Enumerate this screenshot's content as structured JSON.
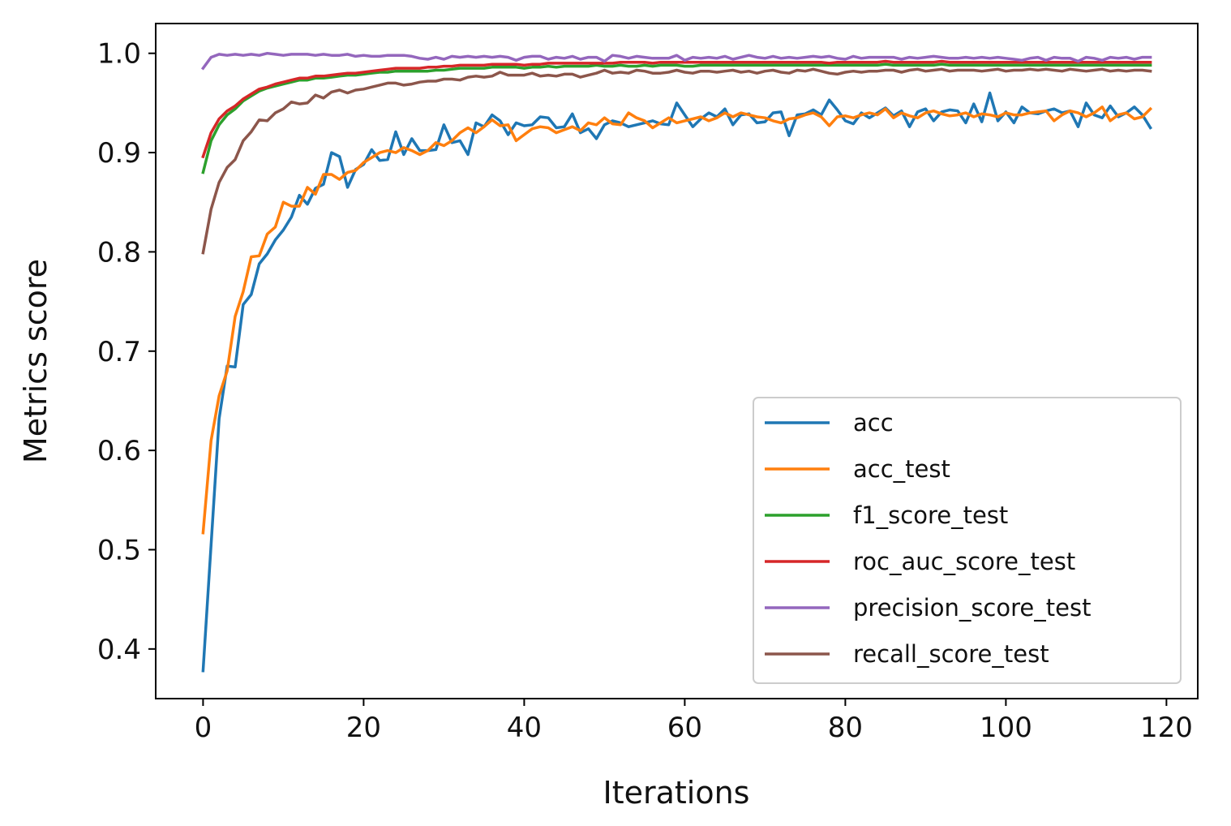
{
  "chart_data": {
    "type": "line",
    "title": "",
    "xlabel": "Iterations",
    "ylabel": "Metrics score",
    "xlim": [
      -5.9,
      123.9
    ],
    "ylim": [
      0.35,
      1.03
    ],
    "xticks": [
      0,
      20,
      40,
      60,
      80,
      100,
      120
    ],
    "yticks": [
      0.4,
      0.5,
      0.6,
      0.7,
      0.8,
      0.9,
      1.0
    ],
    "xtick_labels": [
      "0",
      "20",
      "40",
      "60",
      "80",
      "100",
      "120"
    ],
    "ytick_labels": [
      "0.4",
      "0.5",
      "0.6",
      "0.7",
      "0.8",
      "0.9",
      "1.0"
    ],
    "grid": false,
    "legend_position": "lower-right",
    "series": [
      {
        "name": "acc",
        "color": "#1f77b4",
        "values": [
          0.378,
          0.505,
          0.632,
          0.685,
          0.684,
          0.747,
          0.757,
          0.788,
          0.798,
          0.812,
          0.822,
          0.835,
          0.857,
          0.848,
          0.864,
          0.868,
          0.9,
          0.896,
          0.865,
          0.883,
          0.888,
          0.903,
          0.892,
          0.893,
          0.921,
          0.898,
          0.914,
          0.902,
          0.902,
          0.903,
          0.928,
          0.91,
          0.912,
          0.898,
          0.93,
          0.926,
          0.938,
          0.932,
          0.918,
          0.93,
          0.927,
          0.928,
          0.936,
          0.935,
          0.925,
          0.926,
          0.939,
          0.92,
          0.924,
          0.914,
          0.928,
          0.932,
          0.93,
          0.926,
          0.928,
          0.93,
          0.932,
          0.929,
          0.928,
          0.95,
          0.938,
          0.926,
          0.934,
          0.94,
          0.936,
          0.944,
          0.928,
          0.938,
          0.939,
          0.93,
          0.931,
          0.94,
          0.941,
          0.917,
          0.938,
          0.939,
          0.943,
          0.938,
          0.953,
          0.943,
          0.932,
          0.929,
          0.94,
          0.935,
          0.94,
          0.945,
          0.937,
          0.942,
          0.926,
          0.941,
          0.944,
          0.932,
          0.941,
          0.943,
          0.942,
          0.93,
          0.949,
          0.931,
          0.96,
          0.932,
          0.941,
          0.93,
          0.946,
          0.94,
          0.939,
          0.942,
          0.944,
          0.94,
          0.942,
          0.926,
          0.95,
          0.938,
          0.935,
          0.947,
          0.936,
          0.94,
          0.946,
          0.938,
          0.925
        ]
      },
      {
        "name": "acc_test",
        "color": "#ff7f0e",
        "values": [
          0.517,
          0.61,
          0.655,
          0.68,
          0.735,
          0.76,
          0.795,
          0.796,
          0.818,
          0.825,
          0.85,
          0.846,
          0.846,
          0.865,
          0.858,
          0.878,
          0.878,
          0.873,
          0.88,
          0.882,
          0.89,
          0.895,
          0.9,
          0.902,
          0.9,
          0.905,
          0.902,
          0.898,
          0.902,
          0.91,
          0.907,
          0.912,
          0.92,
          0.925,
          0.92,
          0.926,
          0.933,
          0.927,
          0.928,
          0.912,
          0.918,
          0.924,
          0.926,
          0.925,
          0.92,
          0.923,
          0.926,
          0.922,
          0.93,
          0.928,
          0.935,
          0.929,
          0.928,
          0.94,
          0.935,
          0.932,
          0.925,
          0.93,
          0.935,
          0.93,
          0.932,
          0.934,
          0.936,
          0.932,
          0.935,
          0.94,
          0.936,
          0.94,
          0.938,
          0.936,
          0.935,
          0.932,
          0.93,
          0.934,
          0.935,
          0.938,
          0.94,
          0.936,
          0.927,
          0.936,
          0.937,
          0.935,
          0.938,
          0.94,
          0.938,
          0.944,
          0.935,
          0.94,
          0.937,
          0.935,
          0.94,
          0.942,
          0.939,
          0.937,
          0.938,
          0.94,
          0.936,
          0.939,
          0.938,
          0.936,
          0.94,
          0.938,
          0.938,
          0.94,
          0.941,
          0.942,
          0.932,
          0.938,
          0.942,
          0.94,
          0.936,
          0.94,
          0.946,
          0.932,
          0.938,
          0.94,
          0.934,
          0.936,
          0.944
        ]
      },
      {
        "name": "f1_score_test",
        "color": "#2ca02c",
        "values": [
          0.88,
          0.912,
          0.928,
          0.938,
          0.944,
          0.952,
          0.957,
          0.962,
          0.965,
          0.967,
          0.969,
          0.971,
          0.973,
          0.973,
          0.975,
          0.975,
          0.976,
          0.977,
          0.978,
          0.978,
          0.979,
          0.98,
          0.981,
          0.981,
          0.982,
          0.982,
          0.982,
          0.982,
          0.982,
          0.983,
          0.983,
          0.984,
          0.985,
          0.985,
          0.985,
          0.985,
          0.986,
          0.986,
          0.986,
          0.986,
          0.985,
          0.986,
          0.986,
          0.987,
          0.986,
          0.987,
          0.987,
          0.987,
          0.987,
          0.988,
          0.987,
          0.987,
          0.988,
          0.987,
          0.987,
          0.988,
          0.987,
          0.988,
          0.988,
          0.988,
          0.987,
          0.987,
          0.988,
          0.988,
          0.988,
          0.988,
          0.988,
          0.988,
          0.988,
          0.988,
          0.988,
          0.988,
          0.988,
          0.988,
          0.988,
          0.988,
          0.988,
          0.988,
          0.988,
          0.988,
          0.988,
          0.988,
          0.988,
          0.988,
          0.988,
          0.989,
          0.988,
          0.988,
          0.988,
          0.988,
          0.988,
          0.988,
          0.989,
          0.988,
          0.988,
          0.988,
          0.988,
          0.988,
          0.988,
          0.988,
          0.988,
          0.988,
          0.988,
          0.988,
          0.988,
          0.988,
          0.988,
          0.988,
          0.988,
          0.988,
          0.988,
          0.988,
          0.988,
          0.988,
          0.988,
          0.988,
          0.988,
          0.988,
          0.988
        ]
      },
      {
        "name": "roc_auc_score_test",
        "color": "#d62728",
        "values": [
          0.896,
          0.92,
          0.934,
          0.942,
          0.947,
          0.954,
          0.959,
          0.964,
          0.966,
          0.969,
          0.971,
          0.973,
          0.975,
          0.975,
          0.977,
          0.977,
          0.978,
          0.979,
          0.98,
          0.98,
          0.981,
          0.982,
          0.983,
          0.984,
          0.985,
          0.985,
          0.985,
          0.985,
          0.986,
          0.986,
          0.987,
          0.987,
          0.988,
          0.988,
          0.988,
          0.988,
          0.989,
          0.989,
          0.989,
          0.989,
          0.988,
          0.989,
          0.989,
          0.99,
          0.99,
          0.99,
          0.99,
          0.99,
          0.99,
          0.99,
          0.99,
          0.99,
          0.991,
          0.991,
          0.991,
          0.991,
          0.99,
          0.991,
          0.991,
          0.991,
          0.991,
          0.991,
          0.991,
          0.991,
          0.991,
          0.991,
          0.991,
          0.991,
          0.991,
          0.991,
          0.991,
          0.991,
          0.991,
          0.991,
          0.991,
          0.991,
          0.991,
          0.991,
          0.99,
          0.991,
          0.991,
          0.991,
          0.991,
          0.991,
          0.991,
          0.992,
          0.991,
          0.991,
          0.991,
          0.991,
          0.991,
          0.991,
          0.992,
          0.991,
          0.991,
          0.991,
          0.991,
          0.991,
          0.991,
          0.991,
          0.991,
          0.991,
          0.991,
          0.991,
          0.991,
          0.991,
          0.991,
          0.991,
          0.991,
          0.991,
          0.991,
          0.991,
          0.991,
          0.991,
          0.991,
          0.991,
          0.991,
          0.991,
          0.991
        ]
      },
      {
        "name": "precision_score_test",
        "color": "#9467bd",
        "values": [
          0.985,
          0.996,
          0.999,
          0.998,
          0.999,
          0.998,
          0.999,
          0.998,
          1.0,
          0.999,
          0.998,
          0.999,
          0.999,
          0.999,
          0.998,
          0.999,
          0.998,
          0.998,
          0.999,
          0.997,
          0.998,
          0.997,
          0.997,
          0.998,
          0.998,
          0.998,
          0.997,
          0.995,
          0.994,
          0.996,
          0.994,
          0.997,
          0.996,
          0.997,
          0.996,
          0.997,
          0.996,
          0.997,
          0.996,
          0.993,
          0.996,
          0.997,
          0.997,
          0.994,
          0.996,
          0.995,
          0.997,
          0.994,
          0.996,
          0.996,
          0.992,
          0.998,
          0.997,
          0.995,
          0.997,
          0.996,
          0.995,
          0.995,
          0.995,
          0.998,
          0.993,
          0.996,
          0.995,
          0.996,
          0.995,
          0.997,
          0.994,
          0.996,
          0.998,
          0.996,
          0.995,
          0.997,
          0.995,
          0.996,
          0.995,
          0.996,
          0.997,
          0.996,
          0.997,
          0.995,
          0.994,
          0.997,
          0.995,
          0.996,
          0.996,
          0.996,
          0.996,
          0.994,
          0.996,
          0.995,
          0.996,
          0.997,
          0.996,
          0.995,
          0.995,
          0.996,
          0.995,
          0.996,
          0.995,
          0.996,
          0.995,
          0.994,
          0.993,
          0.995,
          0.996,
          0.993,
          0.996,
          0.995,
          0.995,
          0.992,
          0.996,
          0.995,
          0.993,
          0.996,
          0.995,
          0.996,
          0.994,
          0.996,
          0.996
        ]
      },
      {
        "name": "recall_score_test",
        "color": "#8c564b",
        "values": [
          0.799,
          0.843,
          0.87,
          0.885,
          0.893,
          0.912,
          0.921,
          0.933,
          0.932,
          0.94,
          0.944,
          0.951,
          0.949,
          0.95,
          0.958,
          0.955,
          0.961,
          0.963,
          0.96,
          0.963,
          0.964,
          0.966,
          0.968,
          0.97,
          0.97,
          0.968,
          0.969,
          0.971,
          0.972,
          0.972,
          0.974,
          0.974,
          0.973,
          0.976,
          0.977,
          0.976,
          0.977,
          0.981,
          0.978,
          0.978,
          0.978,
          0.98,
          0.977,
          0.978,
          0.977,
          0.979,
          0.979,
          0.976,
          0.978,
          0.98,
          0.983,
          0.98,
          0.981,
          0.98,
          0.983,
          0.982,
          0.98,
          0.98,
          0.981,
          0.983,
          0.981,
          0.98,
          0.982,
          0.982,
          0.981,
          0.982,
          0.983,
          0.981,
          0.982,
          0.98,
          0.982,
          0.983,
          0.981,
          0.98,
          0.983,
          0.982,
          0.984,
          0.982,
          0.98,
          0.979,
          0.981,
          0.982,
          0.981,
          0.982,
          0.982,
          0.983,
          0.983,
          0.981,
          0.983,
          0.984,
          0.982,
          0.983,
          0.984,
          0.982,
          0.983,
          0.983,
          0.983,
          0.982,
          0.983,
          0.984,
          0.982,
          0.983,
          0.983,
          0.984,
          0.983,
          0.984,
          0.983,
          0.982,
          0.984,
          0.983,
          0.982,
          0.983,
          0.984,
          0.982,
          0.983,
          0.982,
          0.983,
          0.983,
          0.982
        ]
      }
    ]
  }
}
